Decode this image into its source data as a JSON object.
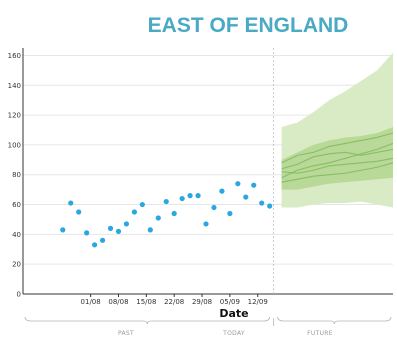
{
  "chart_data": {
    "type": "scatter",
    "title": "EAST OF ENGLAND",
    "xlabel": "Date",
    "ylabel": "",
    "ylim": [
      0,
      165
    ],
    "y_ticks": [
      "0",
      "20",
      "40",
      "60",
      "80",
      "100",
      "120",
      "140",
      "160"
    ],
    "x_ticks": [
      "01/08",
      "08/08",
      "15/08",
      "22/08",
      "29/08",
      "05/09",
      "12/09"
    ],
    "x_range_days": [
      -10,
      83
    ],
    "sections": {
      "past": "PAST",
      "today": "TODAY",
      "future": "FUTURE"
    },
    "today_day": 53,
    "grid": true,
    "legend": "none",
    "colors": {
      "title": "#4aa9c4",
      "points": "#29a7df",
      "band_outer": "#d9ebc4",
      "band_inner": "#b4d794",
      "line": "#7fb85a",
      "grid": "#e6e6e6",
      "today_line": "#bbbbbb"
    },
    "series": [
      {
        "values": [
          [
            0,
            43
          ],
          [
            2,
            61
          ],
          [
            4,
            55
          ],
          [
            6,
            41
          ],
          [
            8,
            33
          ],
          [
            10,
            36
          ],
          [
            12,
            44
          ],
          [
            14,
            42
          ],
          [
            16,
            47
          ],
          [
            18,
            55
          ],
          [
            20,
            60
          ],
          [
            22,
            43
          ],
          [
            24,
            51
          ],
          [
            26,
            62
          ],
          [
            28,
            54
          ],
          [
            30,
            64
          ],
          [
            32,
            66
          ],
          [
            34,
            66
          ],
          [
            36,
            47
          ],
          [
            38,
            58
          ],
          [
            40,
            69
          ],
          [
            42,
            54
          ],
          [
            44,
            74
          ],
          [
            46,
            65
          ],
          [
            48,
            73
          ],
          [
            50,
            61
          ],
          [
            52,
            59
          ]
        ]
      }
    ],
    "forecast": {
      "days": [
        55,
        59,
        63,
        67,
        71,
        75,
        79,
        83
      ],
      "outer_upper": [
        112,
        115,
        122,
        130,
        136,
        143,
        150,
        162
      ],
      "outer_lower": [
        58,
        58,
        60,
        61,
        61,
        62,
        60,
        58
      ],
      "inner_upper": [
        90,
        95,
        100,
        103,
        105,
        106,
        108,
        112
      ],
      "inner_lower": [
        70,
        70,
        72,
        74,
        75,
        76,
        77,
        78
      ],
      "lines": [
        [
          84,
          87,
          92,
          94,
          95,
          93,
          95,
          97
        ],
        [
          78,
          83,
          86,
          88,
          91,
          94,
          97,
          101
        ],
        [
          75,
          77,
          79,
          80,
          81,
          83,
          85,
          88
        ],
        [
          88,
          93,
          95,
          99,
          101,
          103,
          105,
          108
        ],
        [
          82,
          81,
          83,
          86,
          87,
          88,
          89,
          91
        ]
      ]
    }
  }
}
